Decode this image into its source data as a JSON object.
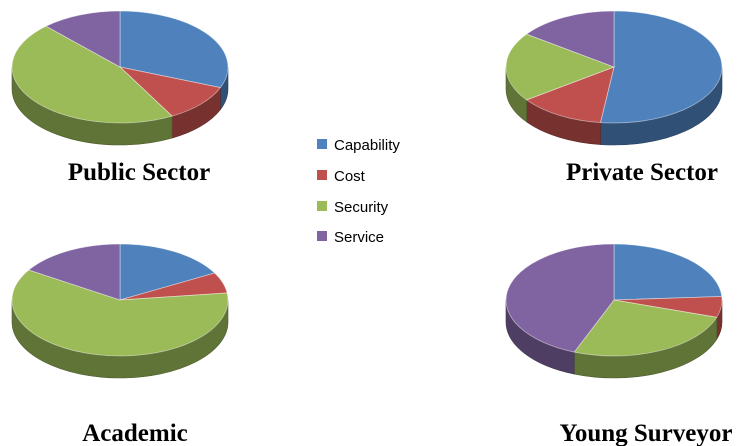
{
  "legend": {
    "items": [
      {
        "label": "Capability",
        "color": "#4F81BD"
      },
      {
        "label": "Cost",
        "color": "#C0504D"
      },
      {
        "label": "Security",
        "color": "#9BBB59"
      },
      {
        "label": "Service",
        "color": "#8064A2"
      }
    ]
  },
  "chart_data": [
    {
      "type": "pie",
      "title": "Public Sector",
      "categories": [
        "Capability",
        "Cost",
        "Security",
        "Service"
      ],
      "values": [
        31,
        11,
        46,
        12
      ]
    },
    {
      "type": "pie",
      "title": "Private Sector",
      "categories": [
        "Capability",
        "Cost",
        "Security",
        "Service"
      ],
      "values": [
        52,
        13,
        20,
        15
      ]
    },
    {
      "type": "pie",
      "title": "Academic",
      "categories": [
        "Capability",
        "Cost",
        "Security",
        "Service"
      ],
      "values": [
        17,
        6,
        61,
        16
      ]
    },
    {
      "type": "pie",
      "title": "Young Surveyor",
      "categories": [
        "Capability",
        "Cost",
        "Security",
        "Service"
      ],
      "values": [
        24,
        6,
        26,
        44
      ]
    }
  ]
}
